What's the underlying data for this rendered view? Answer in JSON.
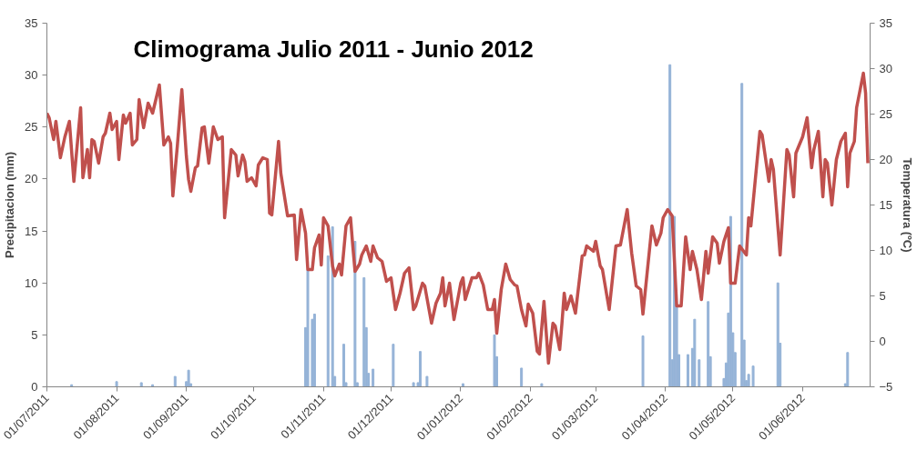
{
  "chart_data": {
    "type": "bar",
    "title": "Climograma Julio 2011 - Junio 2012",
    "ylabel": "Precipitacion (mm)",
    "y2label": "Temperatura (ºC)",
    "xlim": [
      "2011-07-01",
      "2012-07-01"
    ],
    "xticks": [
      {
        "value": "2011-07-01",
        "label": "01/07/2011"
      },
      {
        "value": "2011-08-01",
        "label": "01/08/2011"
      },
      {
        "value": "2011-09-01",
        "label": "01/09/2011"
      },
      {
        "value": "2011-10-01",
        "label": "01/10/2011"
      },
      {
        "value": "2011-11-01",
        "label": "01/11/2011"
      },
      {
        "value": "2011-12-01",
        "label": "01/12/2011"
      },
      {
        "value": "2012-01-01",
        "label": "01/01/2012"
      },
      {
        "value": "2012-02-01",
        "label": "01/02/2012"
      },
      {
        "value": "2012-03-01",
        "label": "01/03/2012"
      },
      {
        "value": "2012-04-01",
        "label": "01/04/2012"
      },
      {
        "value": "2012-05-01",
        "label": "01/05/2012"
      },
      {
        "value": "2012-06-01",
        "label": "01/06/2012"
      }
    ],
    "ylim": [
      0,
      35
    ],
    "yticks": [
      0,
      5,
      10,
      15,
      20,
      25,
      30,
      35
    ],
    "y2lim": [
      -5,
      35
    ],
    "y2ticks": [
      -5,
      0,
      5,
      10,
      15,
      20,
      25,
      30,
      35
    ],
    "grid": false,
    "series": [
      {
        "color": "#95b3d7",
        "x": [
          "2011-07-12",
          "2011-08-01",
          "2011-08-12",
          "2011-08-17",
          "2011-08-27",
          "2011-09-01",
          "2011-09-02",
          "2011-09-03",
          "2011-10-24",
          "2011-10-25",
          "2011-10-27",
          "2011-10-28",
          "2011-11-03",
          "2011-11-05",
          "2011-11-06",
          "2011-11-10",
          "2011-11-11",
          "2011-11-15",
          "2011-11-16",
          "2011-11-19",
          "2011-11-20",
          "2011-11-21",
          "2011-11-23",
          "2011-12-02",
          "2011-12-11",
          "2011-12-13",
          "2011-12-14",
          "2011-12-17",
          "2012-01-02",
          "2012-01-16",
          "2012-01-17",
          "2012-01-28",
          "2012-02-06",
          "2012-03-22",
          "2012-04-03",
          "2012-04-04",
          "2012-04-05",
          "2012-04-06",
          "2012-04-07",
          "2012-04-11",
          "2012-04-13",
          "2012-04-14",
          "2012-04-16",
          "2012-04-20",
          "2012-04-21",
          "2012-04-27",
          "2012-04-28",
          "2012-04-29",
          "2012-04-30",
          "2012-05-01",
          "2012-05-02",
          "2012-05-05",
          "2012-05-06",
          "2012-05-07",
          "2012-05-08",
          "2012-05-10",
          "2012-05-21",
          "2012-05-22",
          "2012-06-20",
          "2012-06-21"
        ],
        "values": [
          0.2,
          0.5,
          0.4,
          0.2,
          1.0,
          0.5,
          1.6,
          0.3,
          5.7,
          11.3,
          6.5,
          7.0,
          12.6,
          15.4,
          1.0,
          4.1,
          0.4,
          14.0,
          0.4,
          10.5,
          5.7,
          1.3,
          1.7,
          4.1,
          0.4,
          0.4,
          3.4,
          1.0,
          0.3,
          5.0,
          2.9,
          1.8,
          0.3,
          4.9,
          31.0,
          2.6,
          16.4,
          7.8,
          3.1,
          3.1,
          3.7,
          6.5,
          2.6,
          8.2,
          2.9,
          0.8,
          2.3,
          7.1,
          16.4,
          5.2,
          3.3,
          29.2,
          4.5,
          0.6,
          1.2,
          2.0,
          10.0,
          4.2,
          0.3,
          3.3
        ]
      },
      {
        "type": "line",
        "axis": "y2",
        "color": "#c0504d",
        "line_style": "solid",
        "marker": "none",
        "x": [
          "2011-07-01",
          "2011-07-02",
          "2011-07-04",
          "2011-07-05",
          "2011-07-07",
          "2011-07-09",
          "2011-07-11",
          "2011-07-13",
          "2011-07-16",
          "2011-07-17",
          "2011-07-19",
          "2011-07-20",
          "2011-07-21",
          "2011-07-22",
          "2011-07-24",
          "2011-07-26",
          "2011-07-27",
          "2011-07-29",
          "2011-07-30",
          "2011-08-01",
          "2011-08-02",
          "2011-08-04",
          "2011-08-05",
          "2011-08-07",
          "2011-08-08",
          "2011-08-10",
          "2011-08-11",
          "2011-08-13",
          "2011-08-15",
          "2011-08-17",
          "2011-08-20",
          "2011-08-22",
          "2011-08-24",
          "2011-08-25",
          "2011-08-26",
          "2011-08-28",
          "2011-08-30",
          "2011-09-01",
          "2011-09-02",
          "2011-09-03",
          "2011-09-05",
          "2011-09-06",
          "2011-09-08",
          "2011-09-09",
          "2011-09-11",
          "2011-09-13",
          "2011-09-15",
          "2011-09-17",
          "2011-09-18",
          "2011-09-21",
          "2011-09-23",
          "2011-09-24",
          "2011-09-26",
          "2011-09-27",
          "2011-09-28",
          "2011-09-30",
          "2011-10-02",
          "2011-10-03",
          "2011-10-05",
          "2011-10-07",
          "2011-10-08",
          "2011-10-09",
          "2011-10-12",
          "2011-10-13",
          "2011-10-16",
          "2011-10-19",
          "2011-10-20",
          "2011-10-22",
          "2011-10-24",
          "2011-10-25",
          "2011-10-27",
          "2011-10-28",
          "2011-10-30",
          "2011-10-31",
          "2011-11-01",
          "2011-11-03",
          "2011-11-05",
          "2011-11-06",
          "2011-11-08",
          "2011-11-09",
          "2011-11-11",
          "2011-11-13",
          "2011-11-14",
          "2011-11-15",
          "2011-11-17",
          "2011-11-18",
          "2011-11-20",
          "2011-11-22",
          "2011-11-23",
          "2011-11-25",
          "2011-11-27",
          "2011-11-29",
          "2011-12-01",
          "2011-12-03",
          "2011-12-05",
          "2011-12-07",
          "2011-12-09",
          "2011-12-11",
          "2011-12-12",
          "2011-12-15",
          "2011-12-16",
          "2011-12-19",
          "2011-12-21",
          "2011-12-23",
          "2011-12-24",
          "2011-12-25",
          "2011-12-27",
          "2011-12-29",
          "2012-01-01",
          "2012-01-02",
          "2012-01-03",
          "2012-01-06",
          "2012-01-08",
          "2012-01-09",
          "2012-01-11",
          "2012-01-13",
          "2012-01-15",
          "2012-01-16",
          "2012-01-17",
          "2012-01-19",
          "2012-01-21",
          "2012-01-23",
          "2012-01-25",
          "2012-01-26",
          "2012-01-28",
          "2012-01-30",
          "2012-01-31",
          "2012-02-02",
          "2012-02-04",
          "2012-02-05",
          "2012-02-07",
          "2012-02-09",
          "2012-02-11",
          "2012-02-12",
          "2012-02-14",
          "2012-02-15",
          "2012-02-16",
          "2012-02-17",
          "2012-02-19",
          "2012-02-21",
          "2012-02-24",
          "2012-02-25",
          "2012-02-26",
          "2012-02-29",
          "2012-03-01",
          "2012-03-03",
          "2012-03-04",
          "2012-03-07",
          "2012-03-10",
          "2012-03-12",
          "2012-03-15",
          "2012-03-17",
          "2012-03-19",
          "2012-03-21",
          "2012-03-22",
          "2012-03-26",
          "2012-03-28",
          "2012-03-30",
          "2012-03-31",
          "2012-04-02",
          "2012-04-04",
          "2012-04-06",
          "2012-04-08",
          "2012-04-10",
          "2012-04-12",
          "2012-04-13",
          "2012-04-15",
          "2012-04-17",
          "2012-04-19",
          "2012-04-20",
          "2012-04-22",
          "2012-04-24",
          "2012-04-25",
          "2012-04-27",
          "2012-04-29",
          "2012-04-30",
          "2012-05-02",
          "2012-05-04",
          "2012-05-07",
          "2012-05-08",
          "2012-05-09",
          "2012-05-13",
          "2012-05-14",
          "2012-05-17",
          "2012-05-18",
          "2012-05-19",
          "2012-05-22",
          "2012-05-25",
          "2012-05-26",
          "2012-05-28",
          "2012-05-29",
          "2012-06-01",
          "2012-06-03",
          "2012-06-05",
          "2012-06-06",
          "2012-06-08",
          "2012-06-10",
          "2012-06-11",
          "2012-06-12",
          "2012-06-14",
          "2012-06-16",
          "2012-06-18",
          "2012-06-20",
          "2012-06-21",
          "2012-06-22",
          "2012-06-24",
          "2012-06-25",
          "2012-06-28",
          "2012-06-29",
          "2012-06-30"
        ],
        "values": [
          25.1,
          24.6,
          22.2,
          24.2,
          20.2,
          22.5,
          24.2,
          17.6,
          25.7,
          18.0,
          21.1,
          18.0,
          22.2,
          22.0,
          19.6,
          22.5,
          22.9,
          25.1,
          23.3,
          24.2,
          20.0,
          24.9,
          24.0,
          25.1,
          21.6,
          22.2,
          26.6,
          23.5,
          26.2,
          25.1,
          28.2,
          21.6,
          22.5,
          21.8,
          16.0,
          21.5,
          27.7,
          20.4,
          17.8,
          16.5,
          19.1,
          19.3,
          23.5,
          23.6,
          19.6,
          23.6,
          22.2,
          22.5,
          13.6,
          21.1,
          20.5,
          18.2,
          20.5,
          19.8,
          17.6,
          18.0,
          17.1,
          19.4,
          20.2,
          20.0,
          14.1,
          13.9,
          22.0,
          18.5,
          13.8,
          13.9,
          9.0,
          14.5,
          11.9,
          7.9,
          7.9,
          10.3,
          11.7,
          8.4,
          13.6,
          12.7,
          8.3,
          7.2,
          8.5,
          7.3,
          12.7,
          13.6,
          10.5,
          7.7,
          8.5,
          9.5,
          10.5,
          8.8,
          10.5,
          9.2,
          8.8,
          6.6,
          7.0,
          3.5,
          5.3,
          7.5,
          8.1,
          3.5,
          3.9,
          6.4,
          6.1,
          2.0,
          4.2,
          5.3,
          7.0,
          3.9,
          6.4,
          2.4,
          6.4,
          7.0,
          4.6,
          7.0,
          7.0,
          7.5,
          6.2,
          3.5,
          3.5,
          4.6,
          0.9,
          5.7,
          8.5,
          6.8,
          6.2,
          6.1,
          3.5,
          1.7,
          4.1,
          3.1,
          -1.1,
          -1.4,
          4.4,
          -2.4,
          2.0,
          1.7,
          -0.9,
          2.0,
          5.3,
          3.5,
          5.0,
          3.1,
          9.4,
          9.5,
          10.5,
          9.9,
          11.0,
          8.3,
          7.9,
          3.5,
          10.5,
          10.6,
          14.5,
          9.7,
          6.1,
          5.7,
          3.0,
          12.7,
          10.6,
          11.9,
          13.6,
          14.5,
          13.8,
          3.9,
          3.9,
          11.5,
          7.9,
          9.9,
          7.9,
          4.6,
          9.9,
          7.5,
          11.5,
          10.8,
          8.6,
          11.0,
          12.5,
          6.4,
          6.4,
          10.5,
          9.5,
          13.6,
          12.7,
          23.1,
          22.7,
          17.6,
          20.0,
          18.9,
          9.5,
          21.1,
          20.5,
          15.9,
          20.7,
          22.5,
          24.6,
          19.1,
          21.1,
          23.1,
          15.9,
          20.0,
          19.6,
          15.0,
          20.0,
          22.0,
          22.9,
          17.0,
          20.7,
          22.0,
          25.7,
          29.5,
          27.3,
          19.6
        ]
      }
    ]
  }
}
